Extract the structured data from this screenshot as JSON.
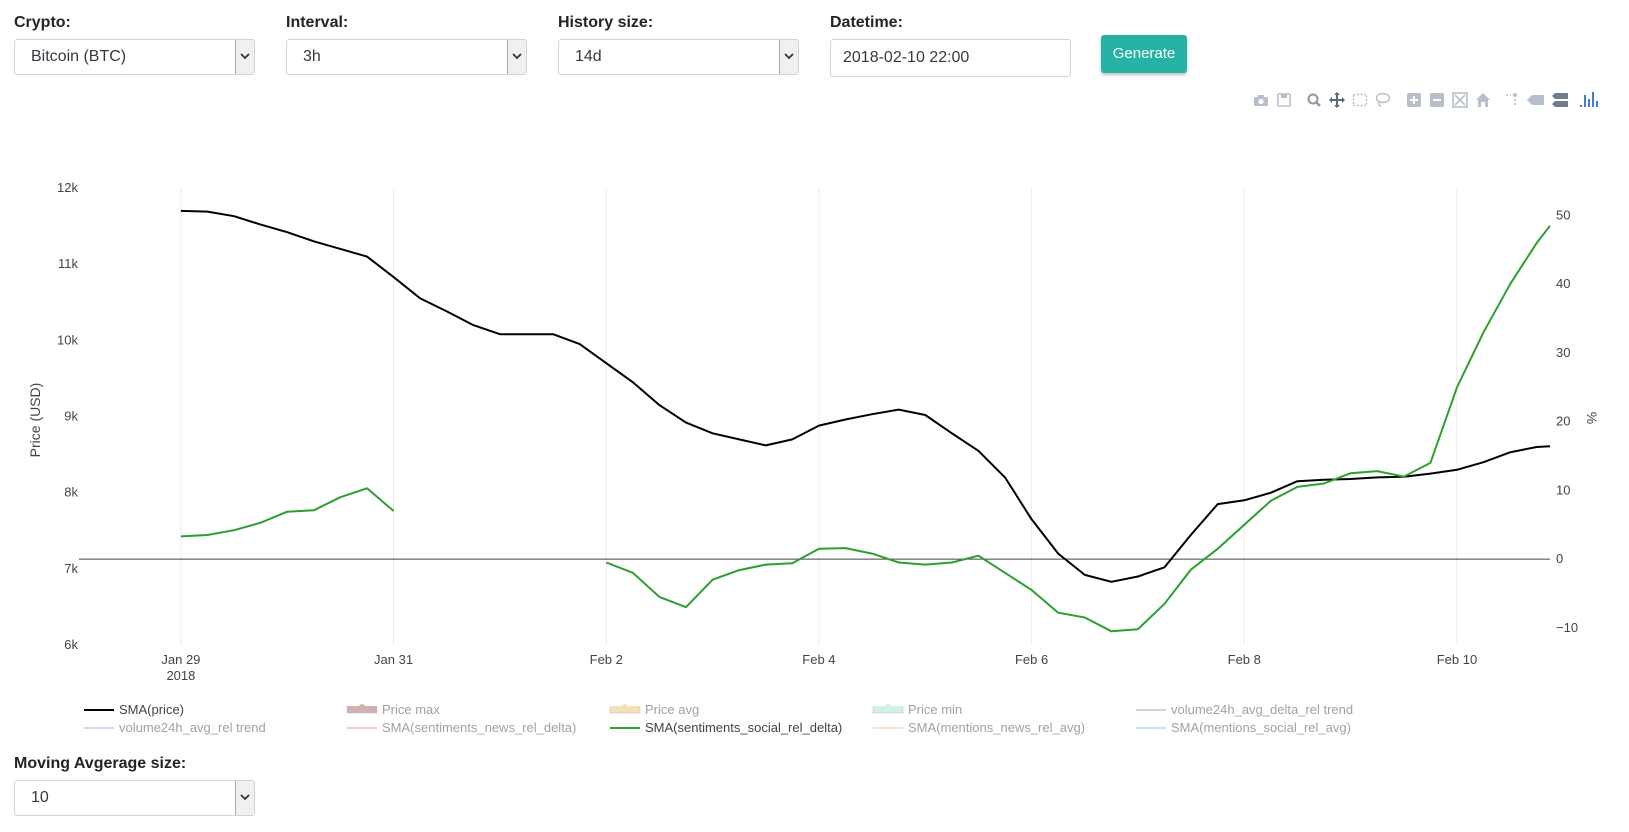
{
  "controls": {
    "crypto": {
      "label": "Crypto:",
      "value": "Bitcoin (BTC)"
    },
    "interval": {
      "label": "Interval:",
      "value": "3h"
    },
    "history": {
      "label": "History size:",
      "value": "14d"
    },
    "datetime": {
      "label": "Datetime:",
      "value": "2018-02-10 22:00"
    },
    "generate_label": "Generate",
    "moving_average": {
      "label": "Moving Avgerage size:",
      "value": "10"
    }
  },
  "modebar_icons": [
    "camera-icon",
    "save-icon",
    "zoom-icon",
    "pan-icon",
    "box-select-icon",
    "lasso-icon",
    "zoom-in-icon",
    "zoom-out-icon",
    "autoscale-icon",
    "reset-axes-icon",
    "spike-lines-icon",
    "hover-closest-icon",
    "hover-compare-icon",
    "plotly-logo-icon"
  ],
  "colors": {
    "accent": "#26b3a6",
    "price": "#000000",
    "social": "#2ca02c"
  },
  "chart_data": {
    "type": "line",
    "x_start": "2018-01-29 00:00",
    "x_ticks": [
      {
        "date": "2018-01-29",
        "label": "Jan 29",
        "sub": "2018"
      },
      {
        "date": "2018-01-31",
        "label": "Jan 31",
        "sub": ""
      },
      {
        "date": "2018-02-02",
        "label": "Feb 2",
        "sub": ""
      },
      {
        "date": "2018-02-04",
        "label": "Feb 4",
        "sub": ""
      },
      {
        "date": "2018-02-06",
        "label": "Feb 6",
        "sub": ""
      },
      {
        "date": "2018-02-08",
        "label": "Feb 8",
        "sub": ""
      },
      {
        "date": "2018-02-10",
        "label": "Feb 10",
        "sub": ""
      }
    ],
    "xlim": [
      "2018-01-28 01:00",
      "2018-02-10 21:00"
    ],
    "ylabel": "Price (USD)",
    "ylim": [
      6000,
      12000
    ],
    "y_ticks": [
      {
        "value": 6000,
        "label": "6k"
      },
      {
        "value": 7000,
        "label": "7k"
      },
      {
        "value": 8000,
        "label": "8k"
      },
      {
        "value": 9000,
        "label": "9k"
      },
      {
        "value": 10000,
        "label": "10k"
      },
      {
        "value": 11000,
        "label": "11k"
      },
      {
        "value": 12000,
        "label": "12k"
      }
    ],
    "y2label": "%",
    "y2lim": [
      -12.5,
      54
    ],
    "y2_ticks": [
      {
        "value": -10,
        "label": "−10"
      },
      {
        "value": 0,
        "label": "0"
      },
      {
        "value": 10,
        "label": "10"
      },
      {
        "value": 20,
        "label": "20"
      },
      {
        "value": 30,
        "label": "30"
      },
      {
        "value": 40,
        "label": "40"
      },
      {
        "value": 50,
        "label": "50"
      }
    ],
    "grid": "vertical",
    "series": [
      {
        "name": "SMA(price)",
        "color": "#000000",
        "axis": "y",
        "points": [
          [
            "2018-01-29 00:00",
            11700
          ],
          [
            "2018-01-29 06:00",
            11690
          ],
          [
            "2018-01-29 12:00",
            11630
          ],
          [
            "2018-01-29 18:00",
            11520
          ],
          [
            "2018-01-30 00:00",
            11420
          ],
          [
            "2018-01-30 06:00",
            11300
          ],
          [
            "2018-01-30 12:00",
            11200
          ],
          [
            "2018-01-30 18:00",
            11100
          ],
          [
            "2018-01-31 00:00",
            10830
          ],
          [
            "2018-01-31 06:00",
            10550
          ],
          [
            "2018-01-31 12:00",
            10380
          ],
          [
            "2018-01-31 18:00",
            10200
          ],
          [
            "2018-02-01 00:00",
            10080
          ],
          [
            "2018-02-01 06:00",
            10080
          ],
          [
            "2018-02-01 12:00",
            10080
          ],
          [
            "2018-02-01 18:00",
            9950
          ],
          [
            "2018-02-02 00:00",
            9700
          ],
          [
            "2018-02-02 06:00",
            9450
          ],
          [
            "2018-02-02 12:00",
            9150
          ],
          [
            "2018-02-02 18:00",
            8920
          ],
          [
            "2018-02-03 00:00",
            8780
          ],
          [
            "2018-02-03 06:00",
            8700
          ],
          [
            "2018-02-03 12:00",
            8620
          ],
          [
            "2018-02-03 18:00",
            8700
          ],
          [
            "2018-02-04 00:00",
            8880
          ],
          [
            "2018-02-04 06:00",
            8960
          ],
          [
            "2018-02-04 12:00",
            9030
          ],
          [
            "2018-02-04 18:00",
            9090
          ],
          [
            "2018-02-05 00:00",
            9020
          ],
          [
            "2018-02-05 06:00",
            8780
          ],
          [
            "2018-02-05 12:00",
            8550
          ],
          [
            "2018-02-05 18:00",
            8200
          ],
          [
            "2018-02-06 00:00",
            7650
          ],
          [
            "2018-02-06 06:00",
            7200
          ],
          [
            "2018-02-06 12:00",
            6920
          ],
          [
            "2018-02-06 18:00",
            6830
          ],
          [
            "2018-02-07 00:00",
            6900
          ],
          [
            "2018-02-07 06:00",
            7020
          ],
          [
            "2018-02-07 12:00",
            7450
          ],
          [
            "2018-02-07 18:00",
            7850
          ],
          [
            "2018-02-08 00:00",
            7900
          ],
          [
            "2018-02-08 06:00",
            8000
          ],
          [
            "2018-02-08 12:00",
            8150
          ],
          [
            "2018-02-08 18:00",
            8170
          ],
          [
            "2018-02-09 00:00",
            8180
          ],
          [
            "2018-02-09 06:00",
            8200
          ],
          [
            "2018-02-09 12:00",
            8210
          ],
          [
            "2018-02-09 18:00",
            8250
          ],
          [
            "2018-02-10 00:00",
            8300
          ],
          [
            "2018-02-10 06:00",
            8400
          ],
          [
            "2018-02-10 12:00",
            8530
          ],
          [
            "2018-02-10 18:00",
            8600
          ],
          [
            "2018-02-10 21:00",
            8610
          ]
        ]
      },
      {
        "name": "SMA(sentiments_social_rel_delta)",
        "color": "#2ca02c",
        "axis": "y2",
        "segments": [
          [
            [
              "2018-01-29 00:00",
              3.3
            ],
            [
              "2018-01-29 06:00",
              3.5
            ],
            [
              "2018-01-29 12:00",
              4.2
            ],
            [
              "2018-01-29 18:00",
              5.3
            ],
            [
              "2018-01-30 00:00",
              6.9
            ],
            [
              "2018-01-30 06:00",
              7.1
            ],
            [
              "2018-01-30 12:00",
              9.0
            ],
            [
              "2018-01-30 18:00",
              10.3
            ],
            [
              "2018-01-31 00:00",
              7.0
            ]
          ],
          [
            [
              "2018-02-02 00:00",
              -0.5
            ],
            [
              "2018-02-02 06:00",
              -2.0
            ],
            [
              "2018-02-02 12:00",
              -5.5
            ],
            [
              "2018-02-02 18:00",
              -7.0
            ],
            [
              "2018-02-03 00:00",
              -3.0
            ],
            [
              "2018-02-03 06:00",
              -1.6
            ],
            [
              "2018-02-03 12:00",
              -0.8
            ],
            [
              "2018-02-03 18:00",
              -0.6
            ],
            [
              "2018-02-04 00:00",
              1.5
            ],
            [
              "2018-02-04 06:00",
              1.6
            ],
            [
              "2018-02-04 12:00",
              0.8
            ],
            [
              "2018-02-04 18:00",
              -0.5
            ],
            [
              "2018-02-05 00:00",
              -0.8
            ],
            [
              "2018-02-05 06:00",
              -0.5
            ],
            [
              "2018-02-05 12:00",
              0.5
            ],
            [
              "2018-02-05 18:00",
              -2.0
            ],
            [
              "2018-02-06 00:00",
              -4.5
            ],
            [
              "2018-02-06 06:00",
              -7.8
            ],
            [
              "2018-02-06 12:00",
              -8.5
            ],
            [
              "2018-02-06 18:00",
              -10.5
            ],
            [
              "2018-02-07 00:00",
              -10.2
            ],
            [
              "2018-02-07 06:00",
              -6.5
            ],
            [
              "2018-02-07 12:00",
              -1.5
            ],
            [
              "2018-02-07 18:00",
              1.5
            ],
            [
              "2018-02-08 00:00",
              5.0
            ],
            [
              "2018-02-08 06:00",
              8.5
            ],
            [
              "2018-02-08 12:00",
              10.5
            ],
            [
              "2018-02-08 18:00",
              11.0
            ],
            [
              "2018-02-09 00:00",
              12.5
            ],
            [
              "2018-02-09 06:00",
              12.8
            ],
            [
              "2018-02-09 12:00",
              12.0
            ],
            [
              "2018-02-09 18:00",
              14.0
            ],
            [
              "2018-02-10 00:00",
              25.0
            ],
            [
              "2018-02-10 06:00",
              33.0
            ],
            [
              "2018-02-10 12:00",
              40.0
            ],
            [
              "2018-02-10 18:00",
              46.0
            ],
            [
              "2018-02-10 21:00",
              48.5
            ]
          ]
        ]
      }
    ],
    "legend": {
      "placement": "bottom",
      "items": [
        {
          "name": "SMA(price)",
          "color": "#000000",
          "style": "line",
          "active": true
        },
        {
          "name": "Price max",
          "color": "#a76467",
          "style": "box",
          "active": false
        },
        {
          "name": "Price avg",
          "color": "#e8c370",
          "style": "box",
          "active": false
        },
        {
          "name": "Price min",
          "color": "#a5e0c6",
          "style": "box",
          "active": false
        },
        {
          "name": "volume24h_avg_delta_rel trend",
          "color": "#c99b96",
          "style": "line",
          "active": false
        },
        {
          "name": "volume24h_avg_rel trend",
          "color": "#c5aadb",
          "style": "line",
          "active": false
        },
        {
          "name": "SMA(sentiments_news_rel_delta)",
          "color": "#e89a9a",
          "style": "line",
          "active": false
        },
        {
          "name": "SMA(sentiments_social_rel_delta)",
          "color": "#2ca02c",
          "style": "line",
          "active": true
        },
        {
          "name": "SMA(mentions_news_rel_avg)",
          "color": "#f7c28f",
          "style": "line",
          "active": false
        },
        {
          "name": "SMA(mentions_social_rel_avg)",
          "color": "#9dc3e6",
          "style": "line",
          "active": false
        }
      ]
    }
  }
}
